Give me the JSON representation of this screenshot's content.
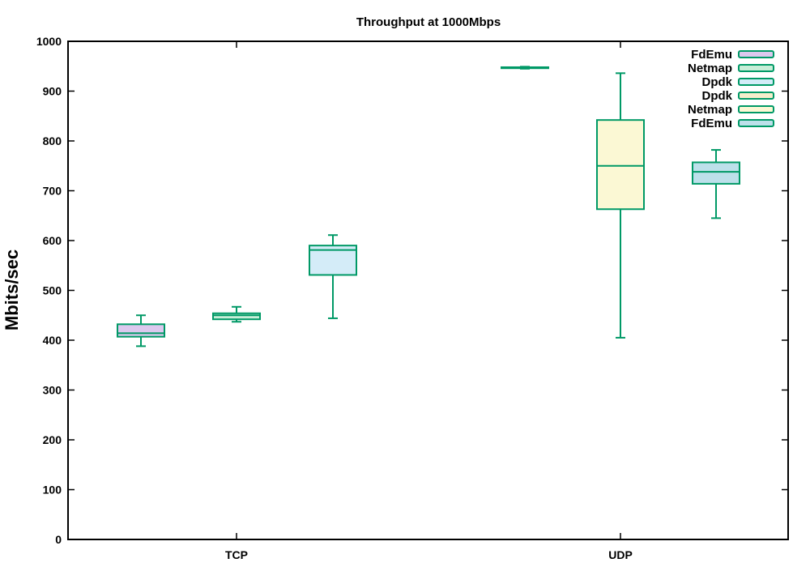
{
  "chart_data": {
    "type": "boxplot",
    "title": "Throughput at 1000Mbps",
    "ylabel": "Mbits/sec",
    "xlabel": "",
    "ylim": [
      0,
      1000
    ],
    "yticks": [
      0,
      100,
      200,
      300,
      400,
      500,
      600,
      700,
      800,
      900,
      1000
    ],
    "categories": [
      "TCP",
      "UDP"
    ],
    "grid": false,
    "legend_position": "top-right",
    "stroke_color": "#009966",
    "series": [
      {
        "name": "FdEmu",
        "group": "TCP",
        "fill": "#dcc8ee",
        "min": 388,
        "q1": 407,
        "median": 414,
        "q3": 432,
        "max": 450
      },
      {
        "name": "Netmap",
        "group": "TCP",
        "fill": "#c8eed8",
        "min": 437,
        "q1": 442,
        "median": 450,
        "q3": 454,
        "max": 467
      },
      {
        "name": "Dpdk",
        "group": "TCP",
        "fill": "#d4ecf8",
        "min": 444,
        "q1": 531,
        "median": 581,
        "q3": 590,
        "max": 611
      },
      {
        "name": "Dpdk",
        "group": "UDP",
        "fill": "#f5eecc",
        "min": 945,
        "q1": 946,
        "median": 947,
        "q3": 948,
        "max": 949
      },
      {
        "name": "Netmap",
        "group": "UDP",
        "fill": "#fbf8d4",
        "min": 405,
        "q1": 663,
        "median": 750,
        "q3": 842,
        "max": 936
      },
      {
        "name": "FdEmu",
        "group": "UDP",
        "fill": "#bde0ea",
        "min": 645,
        "q1": 714,
        "median": 738,
        "q3": 757,
        "max": 782
      }
    ]
  }
}
